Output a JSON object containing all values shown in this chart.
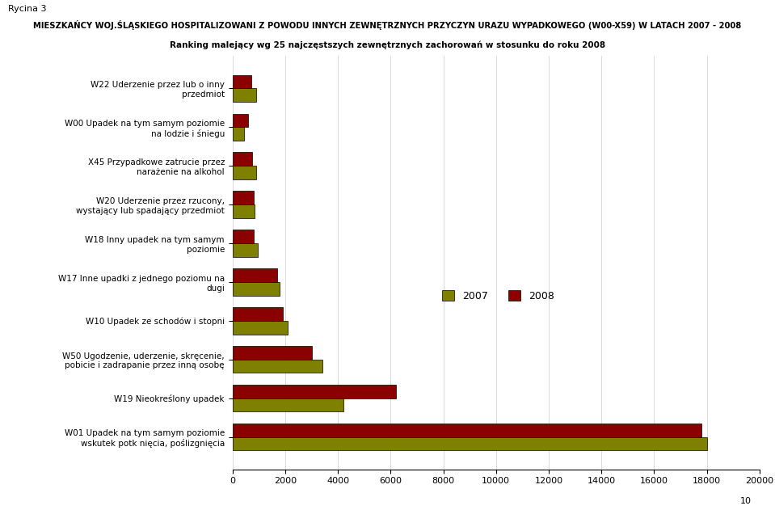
{
  "title_line1": "Rycina 3",
  "title_line2": "MIESZKAŃCY WOJ.ŚLĄSKIEGO HOSPITALIZOWANI Z POWODU INNYCH ZEWNĘTRZNYCH PRZYCZYN URAZU WYPADKOWEGO (W00-X59) W LATACH 2007 - 2008",
  "title_line3": "Ranking malejący wg 25 najczęstszych zewnętrznych zachorowań w stosunku do roku 2008",
  "categories": [
    "W01 Upadek na tym samym poziomie\nwskutek potk nięcia, poślizgnięcia",
    "W19 Nieokreślony upadek",
    "W50 Ugodzenie, uderzenie, skręcenie,\npobicie i zadrapanie przez inną osobę",
    "W10 Upadek ze schodów i stopni",
    "W17 Inne upadki z jednego poziomu na\ndugi",
    "W18 Inny upadek na tym samym\npoziomie",
    "W20 Uderzenie przez rzucony,\nwystający lub spadający przedmiot",
    "X45 Przypadkowe zatrucie przez\nnarażenie na alkohol",
    "W00 Upadek na tym samym poziomie\nna lodzie i śniegu",
    "W22 Uderzenie przez lub o inny\nprzedmiot"
  ],
  "values_2008": [
    17800,
    6200,
    3000,
    1900,
    1700,
    800,
    800,
    750,
    600,
    700
  ],
  "values_2007": [
    18000,
    4200,
    3400,
    2100,
    1800,
    950,
    850,
    900,
    450,
    900
  ],
  "color_2008": "#8B0000",
  "color_2007": "#808000",
  "xlim": [
    0,
    20000
  ],
  "xticks": [
    0,
    2000,
    4000,
    6000,
    8000,
    10000,
    12000,
    14000,
    16000,
    18000,
    20000
  ],
  "legend_2007": "2007",
  "legend_2008": "2008",
  "bar_height": 0.35,
  "background_color": "#ffffff",
  "page_number": "10"
}
